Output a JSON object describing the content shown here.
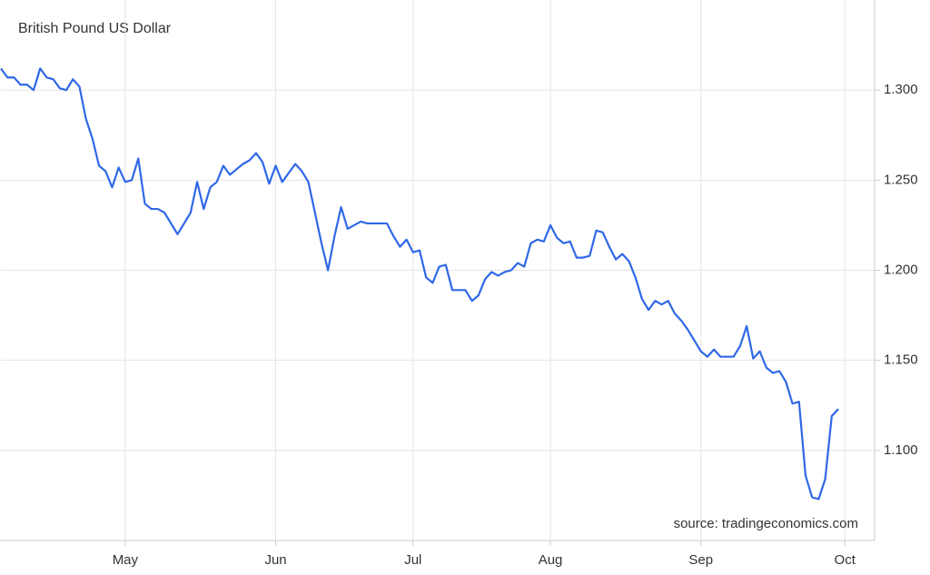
{
  "chart_data": {
    "type": "line",
    "title": "British Pound US Dollar",
    "source": "source: tradingeconomics.com",
    "categories": [
      null,
      null,
      null,
      null,
      null,
      null,
      null,
      null,
      null,
      null,
      null,
      null,
      null,
      null,
      null,
      null,
      null,
      null,
      null,
      "May",
      null,
      null,
      null,
      null,
      null,
      null,
      null,
      null,
      null,
      null,
      null,
      null,
      null,
      null,
      null,
      null,
      null,
      null,
      null,
      null,
      null,
      null,
      "Jun",
      null,
      null,
      null,
      null,
      null,
      null,
      null,
      null,
      null,
      null,
      null,
      null,
      null,
      null,
      null,
      null,
      null,
      null,
      null,
      null,
      "Jul",
      null,
      null,
      null,
      null,
      null,
      null,
      null,
      null,
      null,
      null,
      null,
      null,
      null,
      null,
      null,
      null,
      null,
      null,
      null,
      null,
      "Aug",
      null,
      null,
      null,
      null,
      null,
      null,
      null,
      null,
      null,
      null,
      null,
      null,
      null,
      null,
      null,
      null,
      null,
      null,
      null,
      null,
      null,
      null,
      "Sep",
      null,
      null,
      null,
      null,
      null,
      null,
      null,
      null,
      null,
      null,
      null,
      null,
      null,
      null,
      null,
      null,
      null,
      null,
      null,
      null,
      null,
      "Oct"
    ],
    "values": [
      1.312,
      1.307,
      1.307,
      1.303,
      1.303,
      1.3,
      1.312,
      1.307,
      1.306,
      1.301,
      1.3,
      1.306,
      1.302,
      1.284,
      1.273,
      1.258,
      1.255,
      1.246,
      1.257,
      1.249,
      1.25,
      1.262,
      1.237,
      1.234,
      1.234,
      1.232,
      1.226,
      1.22,
      1.226,
      1.232,
      1.249,
      1.234,
      1.246,
      1.249,
      1.258,
      1.253,
      1.256,
      1.259,
      1.261,
      1.265,
      1.26,
      1.248,
      1.258,
      1.249,
      1.254,
      1.259,
      1.255,
      1.249,
      1.232,
      1.215,
      1.2,
      1.219,
      1.235,
      1.223,
      1.225,
      1.227,
      1.226,
      1.226,
      1.226,
      1.226,
      1.219,
      1.213,
      1.217,
      1.21,
      1.211,
      1.196,
      1.193,
      1.202,
      1.203,
      1.189,
      1.189,
      1.189,
      1.183,
      1.186,
      1.195,
      1.199,
      1.197,
      1.199,
      1.2,
      1.204,
      1.202,
      1.215,
      1.217,
      1.216,
      1.225,
      1.218,
      1.215,
      1.216,
      1.207,
      1.207,
      1.208,
      1.222,
      1.221,
      1.213,
      1.206,
      1.209,
      1.205,
      1.196,
      1.184,
      1.178,
      1.183,
      1.181,
      1.183,
      1.176,
      1.172,
      1.167,
      1.161,
      1.155,
      1.152,
      1.156,
      1.152,
      1.152,
      1.152,
      1.158,
      1.169,
      1.151,
      1.155,
      1.146,
      1.143,
      1.144,
      1.138,
      1.126,
      1.127,
      1.086,
      1.074,
      1.073,
      1.084,
      1.119,
      1.123,
      null
    ],
    "color": "#2f68e6",
    "ylim": [
      1.05,
      1.35
    ],
    "yticks": [
      {
        "value": 1.1,
        "label": "1.100"
      },
      {
        "value": 1.15,
        "label": "1.150"
      },
      {
        "value": 1.2,
        "label": "1.200"
      },
      {
        "value": 1.25,
        "label": "1.250"
      },
      {
        "value": 1.3,
        "label": "1.300"
      }
    ],
    "grid": true
  }
}
